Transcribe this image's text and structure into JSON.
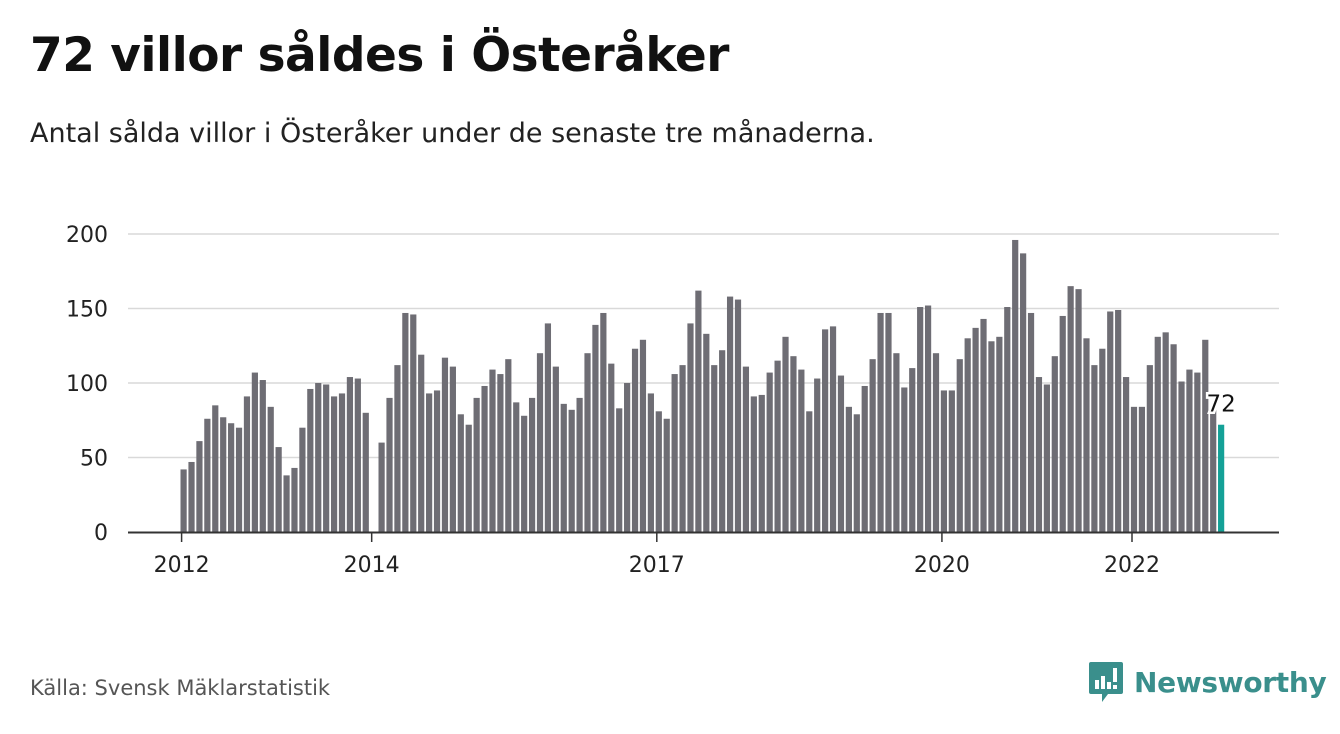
{
  "title": "72 villor såldes i Österåker",
  "subtitle": "Antal sålda villor i Österåker under de senaste tre månaderna.",
  "source": "Källa: Svensk Mäklarstatistik",
  "brand": {
    "name": "Newsworthy",
    "icon": "newsworthy-logo-icon",
    "color": "#3a8f8c"
  },
  "colors": {
    "bar": "#6e6d74",
    "highlight": "#14a197",
    "grid": "#d9d9d9",
    "axis": "#333333"
  },
  "chart_data": {
    "type": "bar",
    "title": "72 villor såldes i Österåker",
    "xlabel": "",
    "ylabel": "",
    "ylim": [
      0,
      200
    ],
    "yticks": [
      0,
      50,
      100,
      150,
      200
    ],
    "yticklabels": [
      "0",
      "50",
      "100",
      "150",
      "200"
    ],
    "grid": true,
    "xticklabels": [
      {
        "label": "2012",
        "index": 0
      },
      {
        "label": "2014",
        "index": 24
      },
      {
        "label": "2017",
        "index": 60
      },
      {
        "label": "2020",
        "index": 96
      },
      {
        "label": "2022",
        "index": 120
      }
    ],
    "start": "2012-01",
    "frequency": "monthly",
    "values": [
      42,
      47,
      61,
      76,
      85,
      77,
      73,
      70,
      91,
      107,
      102,
      84,
      57,
      38,
      43,
      70,
      96,
      100,
      99,
      91,
      93,
      104,
      103,
      80,
      0,
      60,
      90,
      112,
      147,
      146,
      119,
      93,
      95,
      117,
      111,
      79,
      72,
      90,
      98,
      109,
      106,
      116,
      87,
      78,
      90,
      120,
      140,
      111,
      86,
      82,
      90,
      120,
      139,
      147,
      113,
      83,
      100,
      123,
      129,
      93,
      81,
      76,
      106,
      112,
      140,
      162,
      133,
      112,
      122,
      158,
      156,
      111,
      91,
      92,
      107,
      115,
      131,
      118,
      109,
      81,
      103,
      136,
      138,
      105,
      84,
      79,
      98,
      116,
      147,
      147,
      120,
      97,
      110,
      151,
      152,
      120,
      95,
      95,
      116,
      130,
      137,
      143,
      128,
      131,
      151,
      196,
      187,
      147,
      104,
      99,
      118,
      145,
      165,
      163,
      130,
      112,
      123,
      148,
      149,
      104,
      84,
      84,
      112,
      131,
      134,
      126,
      101,
      109,
      107,
      129,
      83,
      72
    ],
    "highlight": {
      "index": 131,
      "value": 72,
      "label": "72"
    }
  }
}
